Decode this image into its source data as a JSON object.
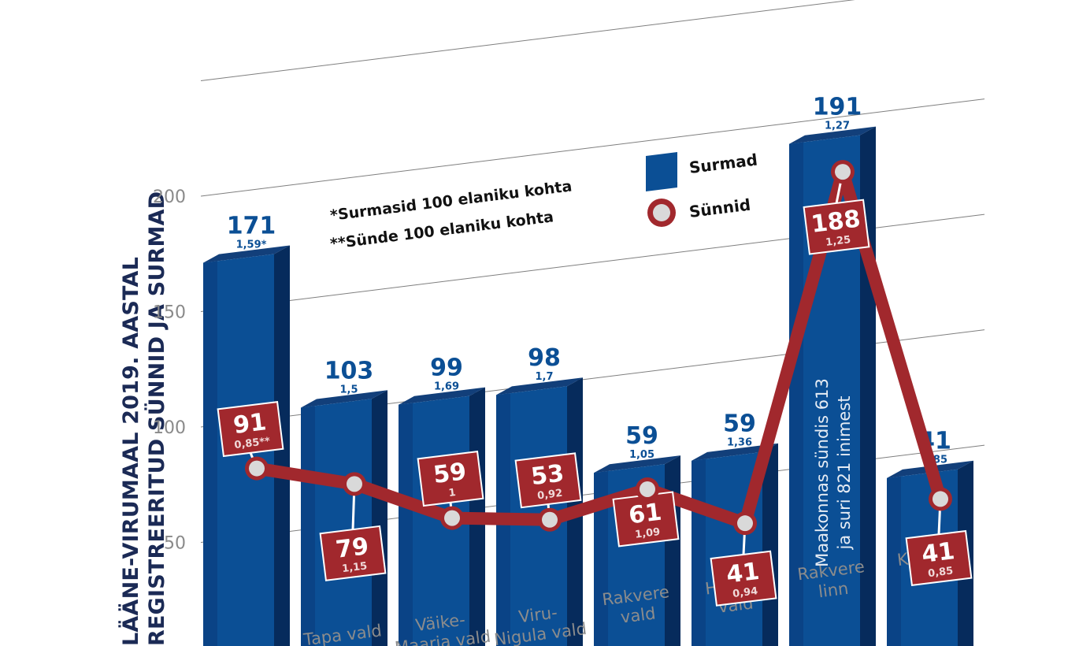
{
  "chart_data": {
    "type": "bar",
    "title_lines": [
      "LÄÄNE-VIRUMAAL 2019. AASTAL",
      "REGISTREERITUD SÜNNID JA SURMAD"
    ],
    "yticks": [
      50,
      100,
      150,
      200
    ],
    "ylim": [
      0,
      240
    ],
    "categories": [
      {
        "lines": [
          ""
        ]
      },
      {
        "lines": [
          "Tapa vald"
        ]
      },
      {
        "lines": [
          "Väike-",
          "Maarja vald"
        ]
      },
      {
        "lines": [
          "Viru-",
          "Nigula vald"
        ]
      },
      {
        "lines": [
          "Rakvere",
          "vald"
        ]
      },
      {
        "lines": [
          "Haljala",
          "vald"
        ]
      },
      {
        "lines": [
          "Rakvere",
          "linn"
        ]
      },
      {
        "lines": [
          "Kadrina",
          "vald"
        ]
      }
    ],
    "series": [
      {
        "name": "Surmad",
        "color": "#0b4f95",
        "values": [
          171,
          103,
          99,
          98,
          59,
          59,
          191,
          41
        ],
        "rates": [
          "1,59*",
          "1,5",
          "1,69",
          "1,7",
          "1,05",
          "1,36",
          "1,27",
          "0,85"
        ]
      },
      {
        "name": "Sünnid",
        "color": "#a1282d",
        "values": [
          91,
          79,
          59,
          53,
          61,
          41,
          188,
          41
        ],
        "rates": [
          "0,85**",
          "1,15",
          "1",
          "0,92",
          "1,09",
          "0,94",
          "1,25",
          "0,85"
        ]
      }
    ],
    "legend": {
      "placement": "top-right",
      "deaths_label": "Surmad",
      "births_label": "Sünnid"
    },
    "notes": [
      "*Surmasid 100 elaniku kohta",
      "**Sünde 100 elaniku kohta"
    ],
    "annotation": [
      "Maakonnas sündis 613",
      "ja suri 821 inimest"
    ]
  }
}
